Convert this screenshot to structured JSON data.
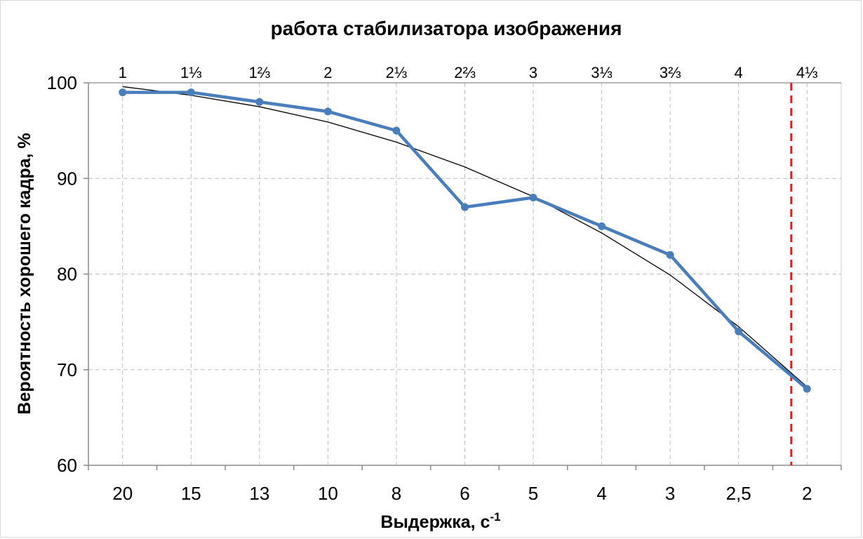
{
  "chart_data": {
    "type": "line",
    "title": "работа стабилизатора изображения",
    "xlabel": "Выдержка, с",
    "xlabel_sup": "-1",
    "ylabel": "Вероятность хорошего кадра, %",
    "categories": [
      "20",
      "15",
      "13",
      "10",
      "8",
      "6",
      "5",
      "4",
      "3",
      "2,5",
      "2"
    ],
    "top_axis_labels": [
      "1",
      "1⅓",
      "1⅔",
      "2",
      "2⅓",
      "2⅔",
      "3",
      "3⅓",
      "3⅔",
      "4",
      "4⅓"
    ],
    "series": [
      {
        "values": [
          99,
          99,
          98,
          97,
          95,
          87,
          88,
          85,
          82,
          74,
          68
        ]
      }
    ],
    "trendline": {
      "type": "polynomial",
      "values": [
        99.6,
        98.7,
        97.5,
        95.9,
        93.8,
        91.2,
        88.1,
        84.3,
        79.9,
        74.5,
        68.2
      ]
    },
    "ylim": [
      60,
      100
    ],
    "yticks": [
      60,
      70,
      80,
      90,
      100
    ],
    "grid": true,
    "legend": "none",
    "marker_line": {
      "x_index": 9.77,
      "style": "dashed"
    },
    "colors": {
      "series": "#4a7ebb",
      "trend": "#000000",
      "marker_line": "#e02020",
      "grid": "#bfbfbf",
      "axis": "#8c8c8c"
    }
  }
}
